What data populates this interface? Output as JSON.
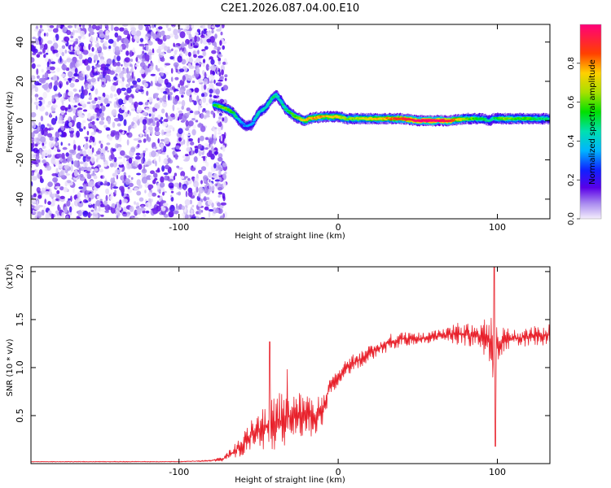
{
  "chart_data": [
    {
      "type": "heatmap",
      "title": "C2E1.2026.087.04.00.E10",
      "xlabel": "Height of straight line (km)",
      "ylabel": "Frequency (Hz)",
      "xlim": [
        -193,
        133
      ],
      "ylim": [
        -50,
        49
      ],
      "xticks": [
        -100,
        0,
        100
      ],
      "xtick_labels": [
        "-100",
        "0",
        "100"
      ],
      "yticks": [
        -40,
        -20,
        0,
        20,
        40
      ],
      "ytick_labels": [
        "-40",
        "-20",
        "0",
        "20",
        "40"
      ],
      "noise_region_x": [
        -193,
        -72
      ],
      "ridge": {
        "x": [
          -78,
          -74,
          -70,
          -66,
          -62,
          -58,
          -54,
          -50,
          -46,
          -42,
          -39,
          -36,
          -33,
          -30,
          -27,
          -24,
          -21,
          -18,
          -10,
          0,
          5,
          10,
          20,
          30,
          40,
          50,
          60,
          70,
          80,
          90,
          95,
          98,
          105,
          115,
          125,
          133
        ],
        "frequency": [
          8,
          7,
          6,
          4,
          0,
          -3,
          -2,
          4,
          6,
          11,
          13,
          10,
          6,
          4,
          2,
          1,
          0,
          1,
          2,
          2,
          1,
          1,
          1,
          1,
          1,
          0,
          0,
          0,
          1,
          1,
          0,
          1,
          1,
          1,
          1,
          1
        ],
        "amplitude": [
          0.45,
          0.5,
          0.55,
          0.45,
          0.3,
          0.25,
          0.3,
          0.35,
          0.35,
          0.4,
          0.4,
          0.35,
          0.4,
          0.45,
          0.5,
          0.55,
          0.65,
          0.7,
          0.7,
          0.65,
          0.55,
          0.55,
          0.65,
          0.7,
          0.8,
          0.9,
          0.95,
          0.85,
          0.55,
          0.45,
          0.35,
          0.4,
          0.55,
          0.5,
          0.45,
          0.4
        ]
      },
      "colorbar": {
        "label": "Normalized spectral amplitude",
        "range": [
          0.0,
          1.0
        ],
        "ticks": [
          0.0,
          0.2,
          0.4,
          0.6,
          0.8
        ],
        "tick_labels": [
          "0.0",
          "0.2",
          "0.4",
          "0.6",
          "0.8"
        ],
        "stops": [
          {
            "v": 0.0,
            "color": "#f4eefc"
          },
          {
            "v": 0.08,
            "color": "#a889ef"
          },
          {
            "v": 0.16,
            "color": "#5a00e8"
          },
          {
            "v": 0.25,
            "color": "#1020ff"
          },
          {
            "v": 0.35,
            "color": "#00b4ff"
          },
          {
            "v": 0.45,
            "color": "#00e0b0"
          },
          {
            "v": 0.55,
            "color": "#00e000"
          },
          {
            "v": 0.65,
            "color": "#a8e000"
          },
          {
            "v": 0.75,
            "color": "#ffd000"
          },
          {
            "v": 0.85,
            "color": "#ff4000"
          },
          {
            "v": 1.0,
            "color": "#ff007a"
          }
        ]
      }
    },
    {
      "type": "line",
      "xlabel": "Height of straight line (km)",
      "ylabel": "SNR (10 * v/v)",
      "scale_label": "(x10",
      "scale_exponent": "4",
      "xlim": [
        -193,
        133
      ],
      "ylim": [
        0.0,
        2.05
      ],
      "xticks": [
        -100,
        0,
        100
      ],
      "xtick_labels": [
        "-100",
        "0",
        "100"
      ],
      "yticks": [
        0.5,
        1.0,
        1.5,
        2.0
      ],
      "ytick_labels": [
        "0.5",
        "1.0",
        "1.5",
        "2.0"
      ],
      "series": [
        {
          "name": "SNR",
          "color": "#e8202a",
          "x": [
            -193,
            -150,
            -100,
            -80,
            -72,
            -66,
            -60,
            -55,
            -50,
            -45,
            -40,
            -35,
            -30,
            -25,
            -20,
            -15,
            -10,
            -5,
            0,
            5,
            10,
            20,
            30,
            40,
            50,
            60,
            70,
            80,
            85,
            90,
            95,
            97,
            98,
            99,
            100,
            105,
            110,
            120,
            133
          ],
          "values": [
            0.02,
            0.02,
            0.02,
            0.03,
            0.05,
            0.12,
            0.2,
            0.3,
            0.35,
            0.38,
            0.42,
            0.45,
            0.5,
            0.52,
            0.5,
            0.5,
            0.55,
            0.8,
            0.9,
            1.0,
            1.05,
            1.15,
            1.25,
            1.3,
            1.3,
            1.32,
            1.35,
            1.35,
            1.33,
            1.32,
            1.3,
            1.2,
            0.6,
            1.3,
            1.25,
            1.3,
            1.3,
            1.32,
            1.35
          ],
          "jitter": [
            0.005,
            0.005,
            0.005,
            0.01,
            0.03,
            0.08,
            0.15,
            0.2,
            0.25,
            0.3,
            0.35,
            0.4,
            0.3,
            0.3,
            0.3,
            0.25,
            0.2,
            0.12,
            0.1,
            0.1,
            0.12,
            0.1,
            0.12,
            0.1,
            0.08,
            0.08,
            0.12,
            0.18,
            0.15,
            0.2,
            0.3,
            0.7,
            0.5,
            0.45,
            0.25,
            0.15,
            0.12,
            0.12,
            0.15
          ],
          "peaks": [
            {
              "x": -43,
              "value": 1.27
            },
            {
              "x": -32,
              "value": 0.98
            },
            {
              "x": 98,
              "value": 2.05
            },
            {
              "x": 98.6,
              "value": 0.18
            }
          ]
        }
      ]
    }
  ]
}
